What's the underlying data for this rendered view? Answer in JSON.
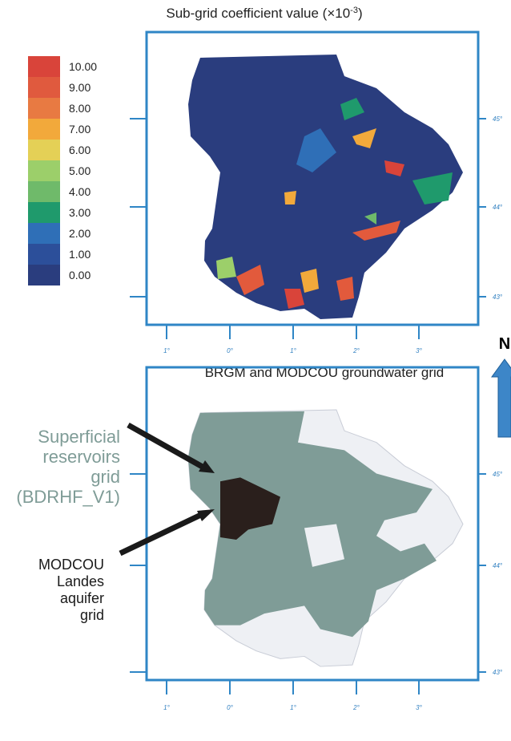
{
  "top_panel": {
    "title": "Sub-grid coefficient value (×10",
    "title_exponent": "-3",
    "title_end": ")",
    "legend_labels": [
      "10.00",
      "9.00",
      "8.00",
      "7.00",
      "6.00",
      "5.00",
      "4.00",
      "3.00",
      "2.00",
      "1.00",
      "0.00"
    ],
    "longitude_labels": [
      "1°",
      "0°",
      "1°",
      "2°",
      "3°"
    ],
    "latitude_labels": [
      "45°",
      "44°",
      "43°"
    ]
  },
  "north_label": "N",
  "bottom_panel": {
    "title": "BRGM and MODCOU groundwater grid",
    "annotations": [
      {
        "lines": [
          "Superficial",
          "reservoirs",
          "grid",
          "(BDRHF_V1)"
        ]
      },
      {
        "lines": [
          "MODCOU",
          "Landes",
          "aquifer",
          "grid"
        ]
      }
    ],
    "longitude_labels": [
      "1°",
      "0°",
      "1°",
      "2°",
      "3°"
    ],
    "latitude_labels": [
      "45°",
      "44°",
      "43°"
    ]
  }
}
